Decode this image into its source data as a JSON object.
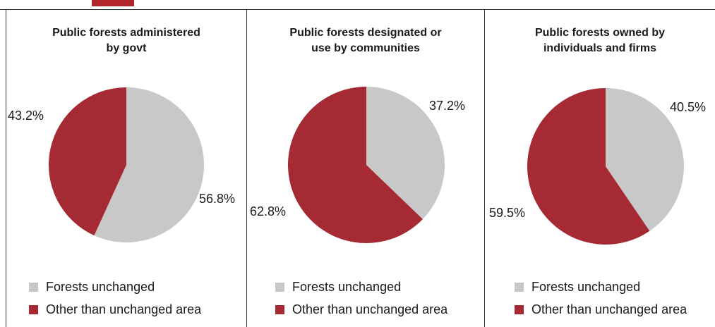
{
  "colors": {
    "unchanged": "#c8c8c8",
    "other": "#a52a34",
    "accent": "#b3252d"
  },
  "legend": {
    "unchanged": "Forests unchanged",
    "other": "Other than unchanged area"
  },
  "chart_data": [
    {
      "type": "pie",
      "title": [
        "Public forests administered",
        "by govt"
      ],
      "slices": [
        {
          "label": "Forests unchanged",
          "value": 56.8,
          "display": "56.8%"
        },
        {
          "label": "Other than unchanged area",
          "value": 43.2,
          "display": "43.2%"
        }
      ],
      "legend_position": "bottom"
    },
    {
      "type": "pie",
      "title": [
        "Public forests designated or",
        "use by communities"
      ],
      "slices": [
        {
          "label": "Forests unchanged",
          "value": 37.2,
          "display": "37.2%"
        },
        {
          "label": "Other than unchanged area",
          "value": 62.8,
          "display": "62.8%"
        }
      ],
      "legend_position": "bottom"
    },
    {
      "type": "pie",
      "title": [
        "Public forests owned by",
        "individuals and firms"
      ],
      "slices": [
        {
          "label": "Forests unchanged",
          "value": 40.5,
          "display": "40.5%"
        },
        {
          "label": "Other than unchanged area",
          "value": 59.5,
          "display": "59.5%"
        }
      ],
      "legend_position": "bottom"
    }
  ]
}
